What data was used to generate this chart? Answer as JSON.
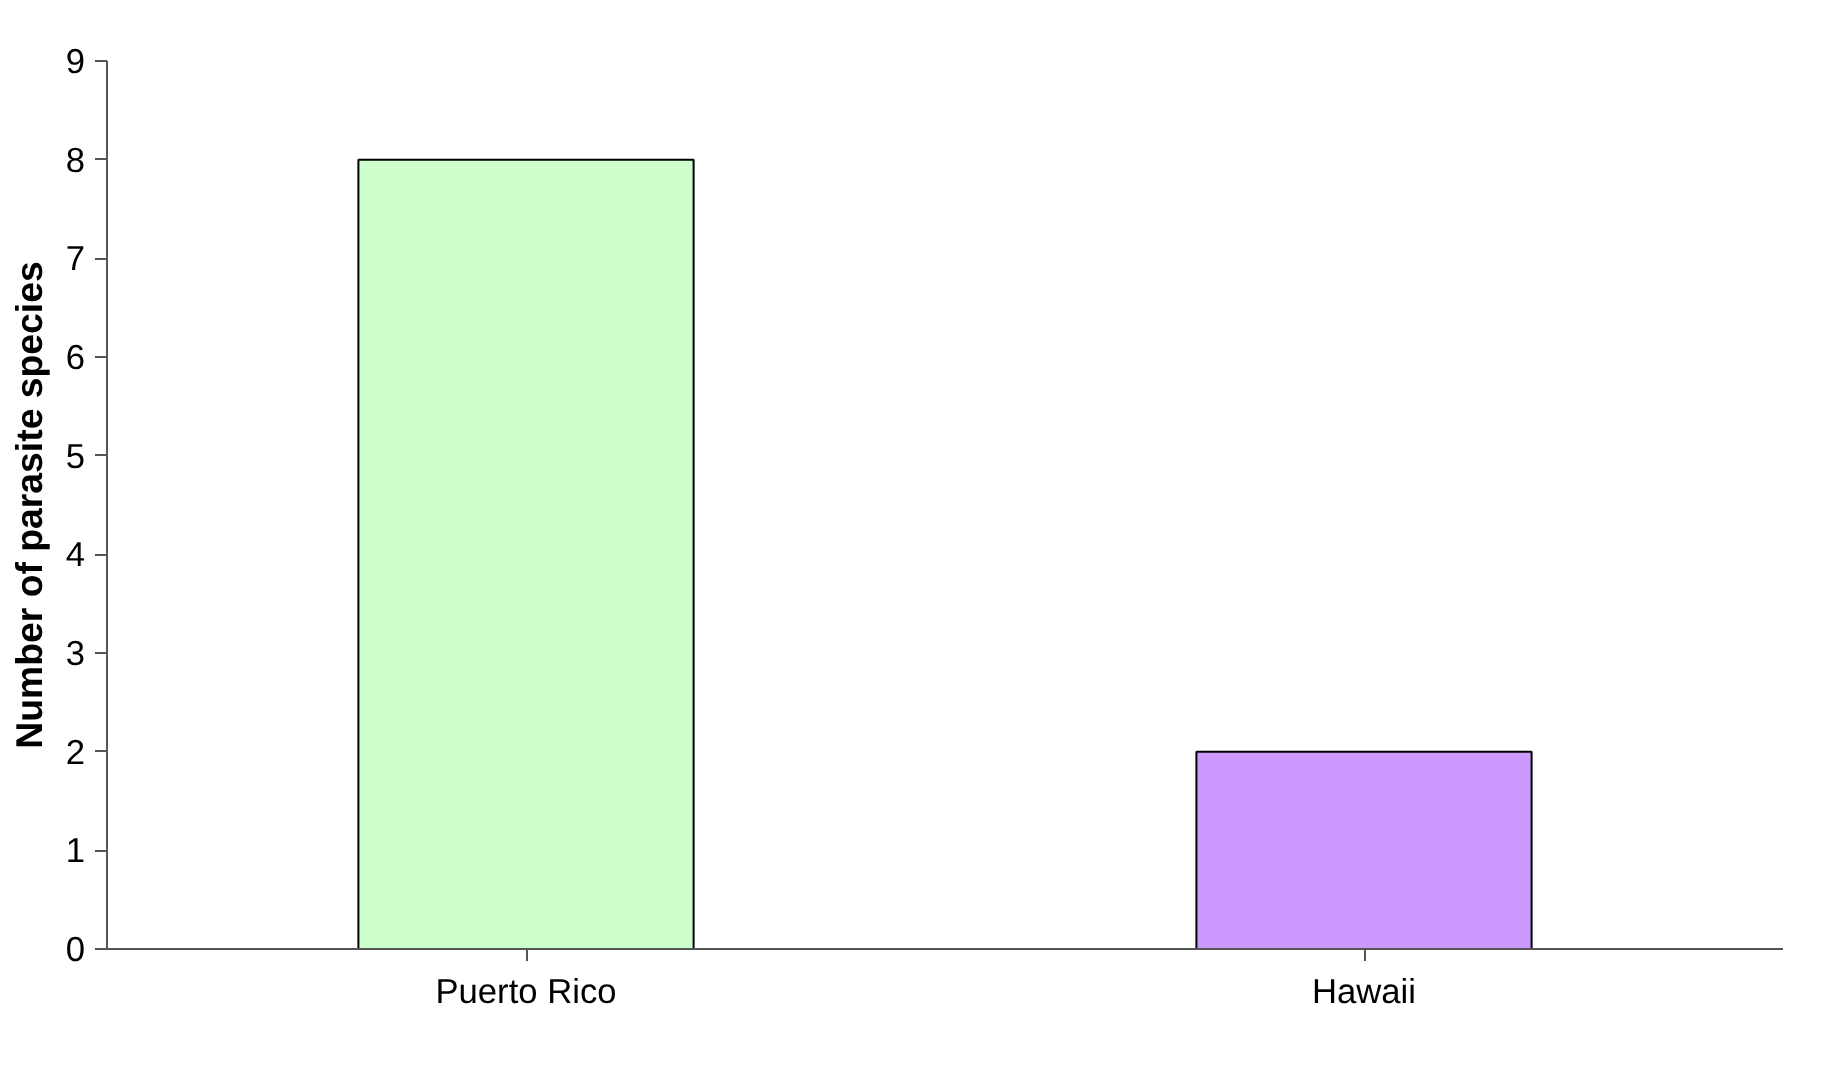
{
  "chart_data": {
    "type": "bar",
    "ylabel": "Number of parasite species",
    "categories": [
      "Puerto Rico",
      "Hawaii"
    ],
    "values": [
      8,
      2
    ],
    "colors": [
      "#ccffcc",
      "#cc99ff"
    ],
    "ylim": [
      0,
      9
    ],
    "yticks": [
      0,
      1,
      2,
      3,
      4,
      5,
      6,
      7,
      8,
      9
    ],
    "grid": false
  }
}
